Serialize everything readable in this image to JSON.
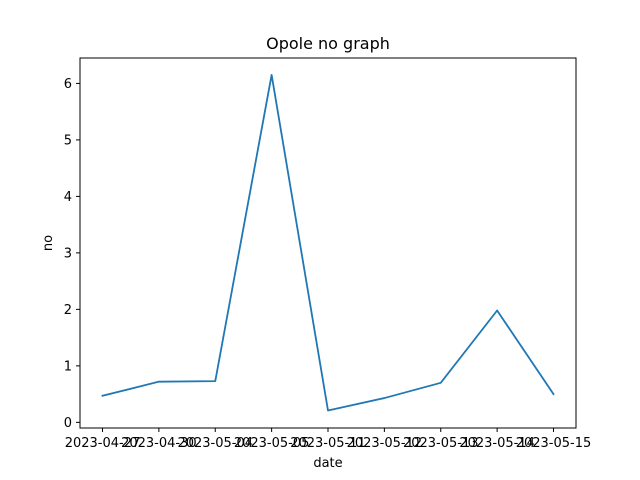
{
  "chart_data": {
    "type": "line",
    "title": "Opole no graph",
    "xlabel": "date",
    "ylabel": "no",
    "x": [
      "2023-04-27",
      "2023-04-30",
      "2023-05-04",
      "2023-05-05",
      "2023-05-11",
      "2023-05-12",
      "2023-05-13",
      "2023-05-14",
      "2023-05-15"
    ],
    "series": [
      {
        "values": [
          0.47,
          0.72,
          0.73,
          6.15,
          0.21,
          0.43,
          0.7,
          1.98,
          0.5
        ],
        "color": "#1f77b4"
      }
    ],
    "ylim": [
      -0.1,
      6.45
    ],
    "yticks": [
      0,
      1,
      2,
      3,
      4,
      5,
      6
    ],
    "grid": false,
    "legend": "none"
  }
}
